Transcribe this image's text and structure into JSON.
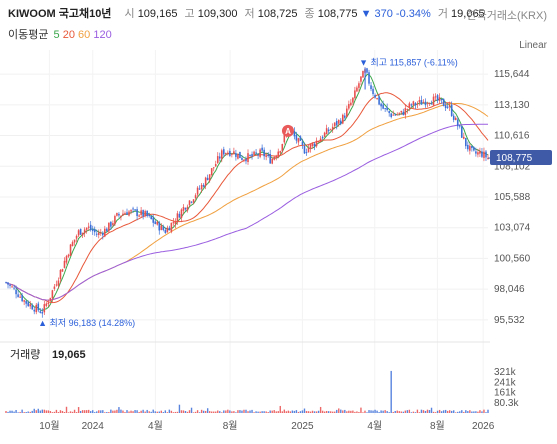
{
  "header": {
    "title": "KIWOOM 국고채10년",
    "open_label": "시",
    "open": "109,165",
    "high_label": "고",
    "high": "109,300",
    "low_label": "저",
    "low": "108,725",
    "close_label": "종",
    "close": "108,775",
    "change": "▼ 370 -0.34%",
    "volume_label": "거",
    "volume": "19,065",
    "exchange": "한국거래소(KRX)"
  },
  "moving_average": {
    "title": "이동평균",
    "periods": [
      {
        "label": "5",
        "color": "#3aa64a"
      },
      {
        "label": "20",
        "color": "#e8583a"
      },
      {
        "label": "60",
        "color": "#f0a040"
      },
      {
        "label": "120",
        "color": "#9a5ee0"
      }
    ]
  },
  "scale_mode": "Linear",
  "colors": {
    "up": "#e94e4e",
    "down": "#3b6fd8",
    "current": "#3f5ba8"
  },
  "chart_data": {
    "type": "candlestick",
    "y_ticks": [
      95532,
      98046,
      100560,
      103074,
      105588,
      108102,
      110616,
      113130,
      115644
    ],
    "y_tick_labels": [
      "95,532",
      "98,046",
      "100,560",
      "103,074",
      "105,588",
      "108,102",
      "110,616",
      "113,130",
      "115,644"
    ],
    "ylim": [
      94700,
      116800
    ],
    "x_tick_labels": [
      "10월",
      "2024",
      "4월",
      "8월",
      "2025",
      "4월",
      "8월",
      "2026"
    ],
    "x_tick_positions": [
      0.09,
      0.18,
      0.31,
      0.465,
      0.615,
      0.765,
      0.895,
      0.99
    ],
    "current_price": 108775,
    "current_price_label": "108,775",
    "annotation_high": "▼ 최고 115,857 (-6.11%)",
    "annotation_low": "▲ 최저 96,183 (14.28%)",
    "high_value": 115857,
    "low_value": 96183,
    "marker_label": "A",
    "price_path": [
      [
        0.0,
        98600
      ],
      [
        0.02,
        97900
      ],
      [
        0.04,
        97000
      ],
      [
        0.06,
        96500
      ],
      [
        0.075,
        96183
      ],
      [
        0.09,
        97300
      ],
      [
        0.11,
        99200
      ],
      [
        0.13,
        101200
      ],
      [
        0.15,
        102700
      ],
      [
        0.17,
        103100
      ],
      [
        0.19,
        102500
      ],
      [
        0.21,
        103000
      ],
      [
        0.23,
        104000
      ],
      [
        0.25,
        104400
      ],
      [
        0.27,
        104300
      ],
      [
        0.29,
        104100
      ],
      [
        0.31,
        103400
      ],
      [
        0.33,
        102800
      ],
      [
        0.35,
        103700
      ],
      [
        0.37,
        104800
      ],
      [
        0.39,
        105700
      ],
      [
        0.41,
        106700
      ],
      [
        0.43,
        108000
      ],
      [
        0.45,
        109300
      ],
      [
        0.47,
        109300
      ],
      [
        0.49,
        108800
      ],
      [
        0.51,
        108900
      ],
      [
        0.53,
        109200
      ],
      [
        0.55,
        108600
      ],
      [
        0.57,
        109700
      ],
      [
        0.585,
        111300
      ],
      [
        0.6,
        110400
      ],
      [
        0.62,
        109400
      ],
      [
        0.64,
        110000
      ],
      [
        0.66,
        110700
      ],
      [
        0.68,
        111400
      ],
      [
        0.7,
        112100
      ],
      [
        0.72,
        113600
      ],
      [
        0.735,
        115200
      ],
      [
        0.745,
        115857
      ],
      [
        0.76,
        114300
      ],
      [
        0.78,
        112900
      ],
      [
        0.8,
        112300
      ],
      [
        0.82,
        112400
      ],
      [
        0.84,
        113100
      ],
      [
        0.86,
        113300
      ],
      [
        0.88,
        113600
      ],
      [
        0.9,
        113400
      ],
      [
        0.92,
        112900
      ],
      [
        0.94,
        111200
      ],
      [
        0.955,
        109800
      ],
      [
        0.97,
        109100
      ],
      [
        0.985,
        109200
      ],
      [
        1.0,
        108775
      ]
    ],
    "volume": {
      "title": "거래량",
      "value": "19,065",
      "tick_labels": [
        "321k",
        "241k",
        "161k",
        "80.3k"
      ],
      "ticks": [
        321000,
        241000,
        161000,
        80300
      ],
      "ylim": [
        0,
        400000
      ]
    },
    "grid": true
  }
}
